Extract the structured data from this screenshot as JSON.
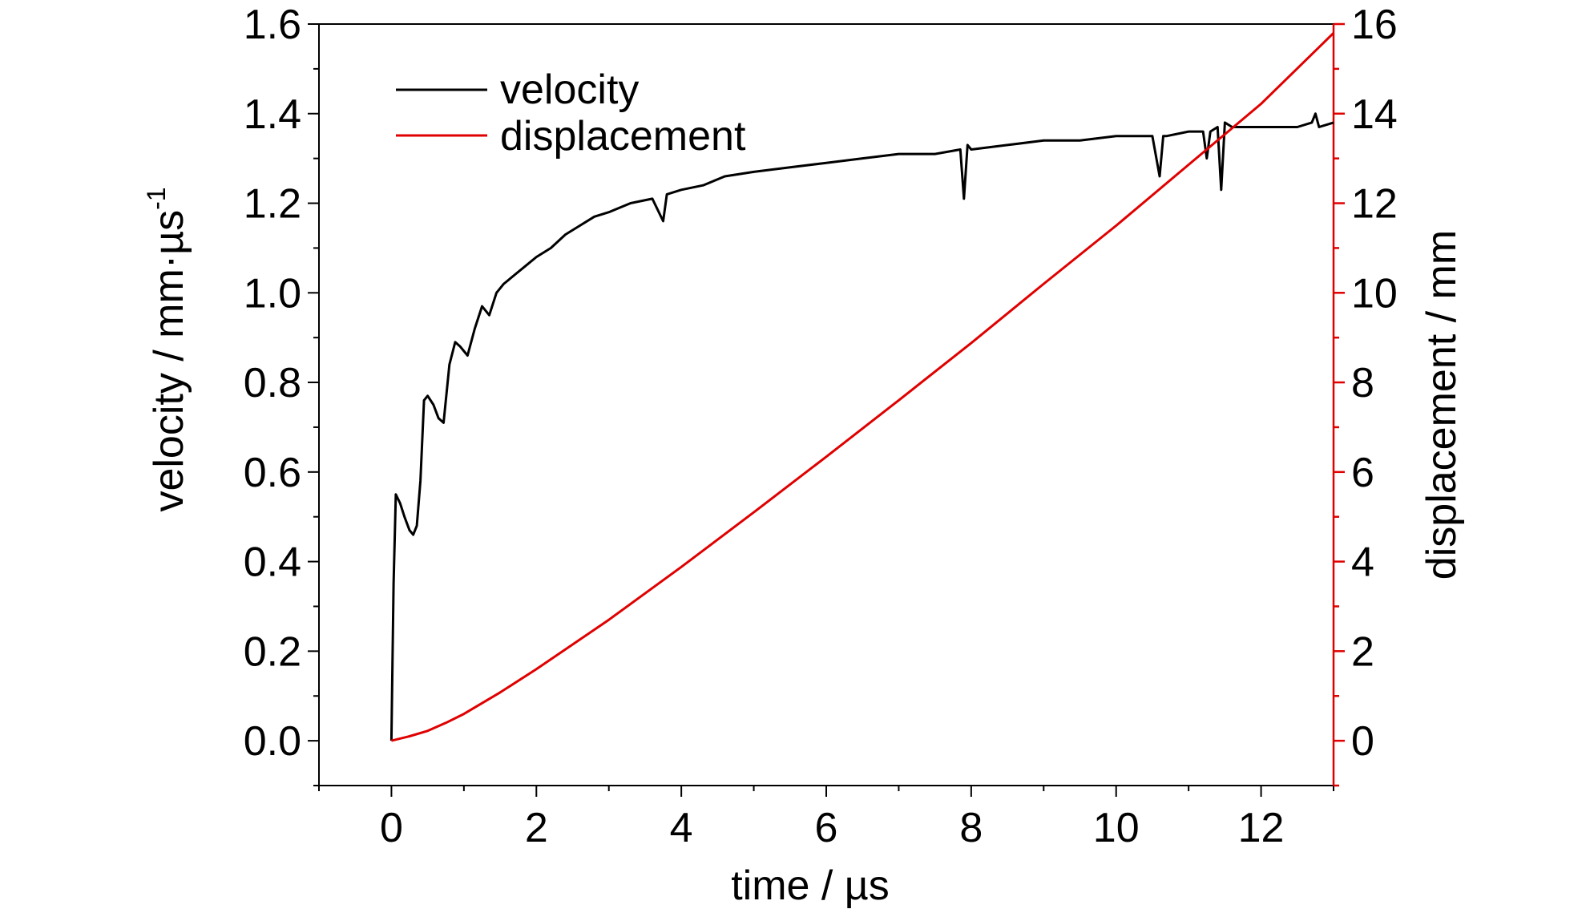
{
  "chart_data": {
    "type": "line",
    "title": "",
    "xlabel": "time / µs",
    "ylabel_left": "velocity / mm·µs",
    "ylabel_left_superscript": "-1",
    "ylabel_right": "displacement / mm",
    "xlim": [
      -1,
      13
    ],
    "ylim_left": [
      -0.1,
      1.6
    ],
    "ylim_right": [
      -1,
      16
    ],
    "x_ticks": [
      "0",
      "2",
      "4",
      "6",
      "8",
      "10",
      "12"
    ],
    "y_left_ticks": [
      "0.0",
      "0.2",
      "0.4",
      "0.6",
      "0.8",
      "1.0",
      "1.2",
      "1.4",
      "1.6"
    ],
    "y_right_ticks": [
      "0",
      "2",
      "4",
      "6",
      "8",
      "10",
      "12",
      "14",
      "16"
    ],
    "grid": false,
    "legend_position": "top-left",
    "colors": {
      "velocity": "#000000",
      "displacement": "#e00000",
      "left_axis": "#000000",
      "right_axis": "#e00000"
    },
    "series": [
      {
        "name": "velocity",
        "axis": "left",
        "x": [
          0,
          0.03,
          0.06,
          0.12,
          0.18,
          0.25,
          0.3,
          0.35,
          0.4,
          0.45,
          0.5,
          0.58,
          0.65,
          0.72,
          0.8,
          0.88,
          0.95,
          1.05,
          1.15,
          1.25,
          1.35,
          1.45,
          1.55,
          1.7,
          1.85,
          2.0,
          2.2,
          2.4,
          2.6,
          2.8,
          3.0,
          3.3,
          3.6,
          3.75,
          3.8,
          4.0,
          4.3,
          4.6,
          5.0,
          5.5,
          6.0,
          6.5,
          7.0,
          7.5,
          7.85,
          7.9,
          7.95,
          8.0,
          8.5,
          9.0,
          9.5,
          10.0,
          10.5,
          10.6,
          10.65,
          10.7,
          11.0,
          11.2,
          11.25,
          11.3,
          11.4,
          11.45,
          11.5,
          11.6,
          12.0,
          12.5,
          12.7,
          12.75,
          12.8,
          13.0
        ],
        "values": [
          0.0,
          0.35,
          0.55,
          0.53,
          0.5,
          0.47,
          0.46,
          0.48,
          0.58,
          0.76,
          0.77,
          0.75,
          0.72,
          0.71,
          0.84,
          0.89,
          0.88,
          0.86,
          0.92,
          0.97,
          0.95,
          1.0,
          1.02,
          1.04,
          1.06,
          1.08,
          1.1,
          1.13,
          1.15,
          1.17,
          1.18,
          1.2,
          1.21,
          1.16,
          1.22,
          1.23,
          1.24,
          1.26,
          1.27,
          1.28,
          1.29,
          1.3,
          1.31,
          1.31,
          1.32,
          1.21,
          1.33,
          1.32,
          1.33,
          1.34,
          1.34,
          1.35,
          1.35,
          1.26,
          1.35,
          1.35,
          1.36,
          1.36,
          1.3,
          1.36,
          1.37,
          1.23,
          1.38,
          1.37,
          1.37,
          1.37,
          1.38,
          1.4,
          1.37,
          1.38
        ]
      },
      {
        "name": "displacement",
        "axis": "right",
        "x": [
          0,
          0.25,
          0.5,
          0.75,
          1.0,
          1.5,
          2.0,
          2.5,
          3.0,
          4.0,
          5.0,
          6.0,
          7.0,
          8.0,
          9.0,
          10.0,
          11.0,
          12.0,
          13.0
        ],
        "values": [
          0.0,
          0.1,
          0.22,
          0.4,
          0.6,
          1.08,
          1.6,
          2.15,
          2.7,
          3.88,
          5.1,
          6.34,
          7.6,
          8.88,
          10.2,
          11.5,
          12.86,
          14.22,
          15.8
        ]
      }
    ]
  }
}
